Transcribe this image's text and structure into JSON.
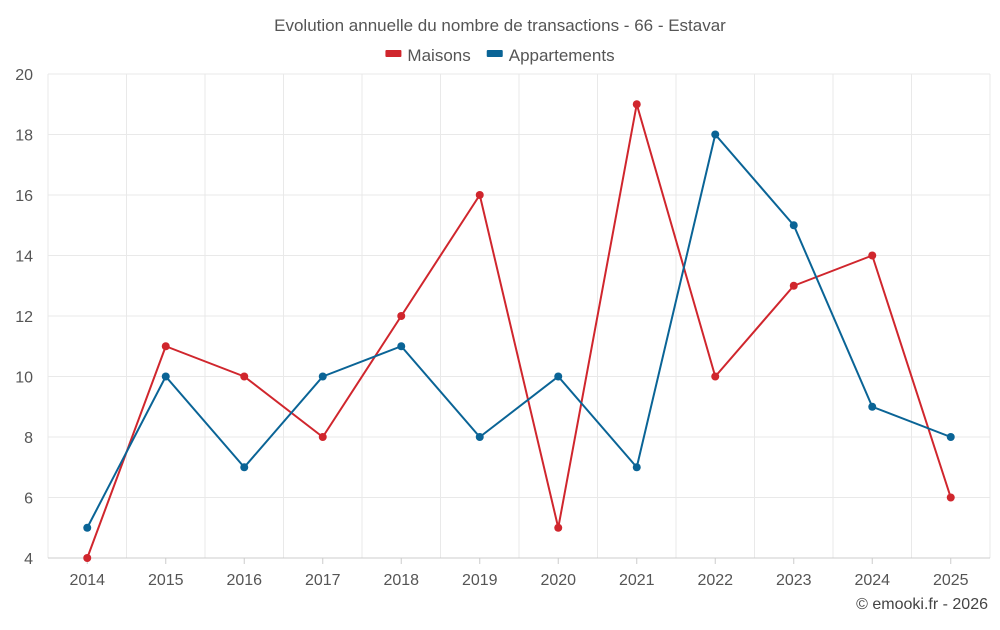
{
  "chart_data": {
    "type": "line",
    "title": "Evolution annuelle du nombre de transactions - 66 - Estavar",
    "categories": [
      "2014",
      "2015",
      "2016",
      "2017",
      "2018",
      "2019",
      "2020",
      "2021",
      "2022",
      "2023",
      "2024",
      "2025"
    ],
    "series": [
      {
        "name": "Maisons",
        "color": "#d0262d",
        "values": [
          4,
          11,
          10,
          8,
          12,
          16,
          5,
          19,
          10,
          13,
          14,
          6
        ]
      },
      {
        "name": "Appartements",
        "color": "#0a6496",
        "values": [
          5,
          10,
          7,
          10,
          11,
          8,
          10,
          7,
          18,
          15,
          9,
          8
        ]
      }
    ],
    "ylim": [
      4,
      20
    ],
    "yticks": [
      4,
      6,
      8,
      10,
      12,
      14,
      16,
      18,
      20
    ],
    "grid": true,
    "legend_position": "top-center",
    "xlabel": "",
    "ylabel": ""
  },
  "credit": "© emooki.fr - 2026"
}
